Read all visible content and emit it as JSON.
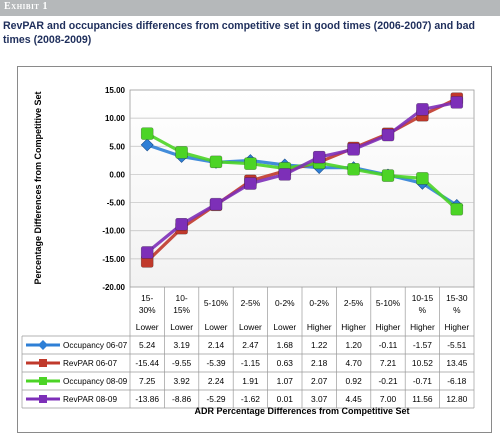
{
  "header": {
    "exhibit_label": "Exhibit 1",
    "title": "RevPAR and occupancies differences from competitive set in good times (2006-2007) and bad times (2008-2009)"
  },
  "chart_data": {
    "type": "line",
    "title": "",
    "ylabel": "Percentage Differences from Competitive Set",
    "xlabel": "ADR Percentage Differences from Competitive Set",
    "ylim": [
      -20,
      15
    ],
    "ytick_step": 5,
    "yticks": [
      "15.00",
      "10.00",
      "5.00",
      "0.00",
      "-5.00",
      "-10.00",
      "-15.00",
      "-20.00"
    ],
    "grid": true,
    "legend": "table-left",
    "categories": [
      {
        "range": [
          "15-",
          "30%"
        ],
        "direction": "Lower"
      },
      {
        "range": [
          "10-",
          "15%"
        ],
        "direction": "Lower"
      },
      {
        "range": [
          "5-10%"
        ],
        "direction": "Lower"
      },
      {
        "range": [
          "2-5%"
        ],
        "direction": "Lower"
      },
      {
        "range": [
          "0-2%"
        ],
        "direction": "Lower"
      },
      {
        "range": [
          "0-2%"
        ],
        "direction": "Higher"
      },
      {
        "range": [
          "2-5%"
        ],
        "direction": "Higher"
      },
      {
        "range": [
          "5-10%"
        ],
        "direction": "Higher"
      },
      {
        "range": [
          "10-15",
          "%"
        ],
        "direction": "Higher"
      },
      {
        "range": [
          "15-30",
          "%"
        ],
        "direction": "Higher"
      }
    ],
    "series": [
      {
        "name": "Occupancy 06-07",
        "color": "#2e7fd6",
        "marker": "diamond",
        "values": [
          5.24,
          3.19,
          2.14,
          2.47,
          1.68,
          1.22,
          1.2,
          -0.11,
          -1.57,
          -5.51
        ],
        "labels": [
          "5.24",
          "3.19",
          "2.14",
          "2.47",
          "1.68",
          "1.22",
          "1.20",
          "-0.11",
          "-1.57",
          "-5.51"
        ]
      },
      {
        "name": "RevPAR 06-07",
        "color": "#c0392b",
        "marker": "square",
        "values": [
          -15.44,
          -9.55,
          -5.39,
          -1.15,
          0.63,
          2.18,
          4.7,
          7.21,
          10.52,
          13.45
        ],
        "labels": [
          "-15.44",
          "-9.55",
          "-5.39",
          "-1.15",
          "0.63",
          "2.18",
          "4.70",
          "7.21",
          "10.52",
          "13.45"
        ]
      },
      {
        "name": "Occupancy 08-09",
        "color": "#4cd426",
        "marker": "square",
        "values": [
          7.25,
          3.92,
          2.24,
          1.91,
          1.07,
          2.07,
          0.92,
          -0.21,
          -0.71,
          -6.18
        ],
        "labels": [
          "7.25",
          "3.92",
          "2.24",
          "1.91",
          "1.07",
          "2.07",
          "0.92",
          "-0.21",
          "-0.71",
          "-6.18"
        ]
      },
      {
        "name": "RevPAR 08-09",
        "color": "#7d2fb8",
        "marker": "square",
        "values": [
          -13.86,
          -8.86,
          -5.29,
          -1.62,
          0.01,
          3.07,
          4.45,
          7.0,
          11.56,
          12.8
        ],
        "labels": [
          "-13.86",
          "-8.86",
          "-5.29",
          "-1.62",
          "0.01",
          "3.07",
          "4.45",
          "7.00",
          "11.56",
          "12.80"
        ]
      }
    ]
  }
}
